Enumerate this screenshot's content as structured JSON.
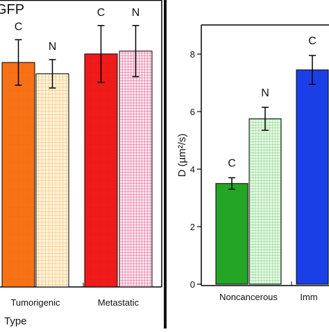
{
  "chart_data": [
    {
      "type": "bar",
      "title": "GFP",
      "xlabel": "Type",
      "ylabel": "",
      "categories": [
        "Tumorigenic",
        "Metastatic"
      ],
      "series": [
        {
          "name": "C",
          "values": [
            7.9,
            8.2
          ],
          "errors": [
            0.8,
            1.0
          ]
        },
        {
          "name": "N",
          "values": [
            7.5,
            8.3
          ],
          "errors": [
            0.5,
            0.9
          ]
        }
      ],
      "bar_labels": [
        "C",
        "N"
      ],
      "colors": {
        "Tumorigenic": [
          "#f77216",
          "#fde3b6"
        ],
        "Metastatic": [
          "#ef1a1a",
          "#f9cde0"
        ]
      },
      "ylim": [
        0,
        10
      ]
    },
    {
      "type": "bar",
      "title": "",
      "xlabel": "",
      "ylabel": "D (µm²/s)",
      "categories": [
        "Noncancerous",
        "Imm"
      ],
      "series": [
        {
          "name": "C",
          "values": [
            3.5,
            7.45
          ],
          "errors": [
            0.2,
            0.5
          ]
        },
        {
          "name": "N",
          "values": [
            5.75,
            null
          ],
          "errors": [
            0.4,
            null
          ]
        }
      ],
      "bar_labels": [
        "C",
        "N"
      ],
      "yticks": [
        0,
        2,
        4,
        6,
        8
      ],
      "colors": {
        "Noncancerous": [
          "#25a525",
          "#c4ecc4"
        ],
        "Imm": [
          "#1b3fe6",
          null
        ]
      },
      "ylim": [
        0,
        9
      ]
    }
  ]
}
